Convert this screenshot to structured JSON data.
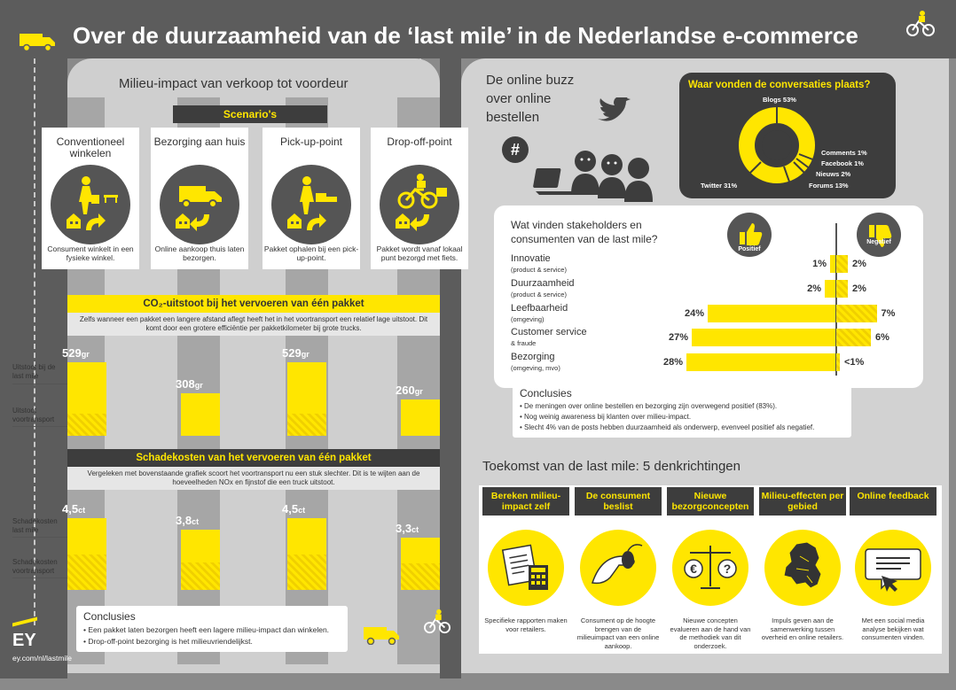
{
  "title": "Over de duurzaamheid van de ‘last mile’ in de Nederlandse e-commerce",
  "left": {
    "heading": "Milieu-impact van verkoop tot voordeur",
    "scenarios_label": "Scenario's",
    "scenarios": [
      {
        "label": "Conventioneel winkelen",
        "caption": "Consument winkelt in een fysieke winkel."
      },
      {
        "label": "Bezorging aan huis",
        "caption": "Online aankoop thuis laten bezorgen."
      },
      {
        "label": "Pick-up-point",
        "caption": "Pakket ophalen bij een pick-up-point."
      },
      {
        "label": "Drop-off-point",
        "caption": "Pakket wordt vanaf lokaal punt bezorgd met fiets."
      }
    ],
    "co2": {
      "title": "CO₂-uitstoot bij het vervoeren van één pakket",
      "subtitle": "Zelfs wanneer een pakket een langere afstand aflegt heeft het in het voortransport een relatief lage uitstoot. Dit komt door een grotere efficiëntie per pakketkilometer bij grote trucks.",
      "unit": "gr",
      "values": [
        "529",
        "308",
        "529",
        "260"
      ],
      "legend_top": "Uitstoot bij de last mile",
      "legend_bottom": "Uitstoot voortransport"
    },
    "damage": {
      "title": "Schadekosten van het vervoeren van één pakket",
      "subtitle": "Vergeleken met bovenstaande grafiek scoort het voortransport nu een stuk slechter. Dit is te wijten aan de hoeveelheden NOx en fijnstof die een truck uitstoot.",
      "unit": "ct",
      "values": [
        "4,5",
        "3,8",
        "4,5",
        "3,3"
      ],
      "legend_top": "Schadekosten last mile",
      "legend_bottom": "Schadekosten voortransport"
    },
    "conclusions_title": "Conclusies",
    "conclusions": [
      "• Een pakket laten bezorgen heeft een lagere milieu-impact dan winkelen.",
      "• Drop-off-point bezorging is het milieuvriendelijkst."
    ]
  },
  "brand": {
    "logo": "EY",
    "url": "ey.com/nl/lastmile"
  },
  "right": {
    "buzz_title": "De online buzz over online bestellen",
    "hash": "#",
    "where_title": "Waar vonden de conversaties plaats?",
    "donut": {
      "blogs": "Blogs 53%",
      "comments": "Comments 1%",
      "facebook": "Facebook 1%",
      "nieuws": "Nieuws 2%",
      "forums": "Forums 13%",
      "twitter": "Twitter 31%"
    },
    "stake_title": "Wat vinden stakeholders en consumenten van de last mile?",
    "positief": "Positief",
    "negatief": "Negatief",
    "rows": [
      {
        "name": "Innovatie",
        "sub": "(product & service)",
        "pos": "1%",
        "neg": "2%",
        "pos_v": 1,
        "neg_v": 2
      },
      {
        "name": "Duurzaamheid",
        "sub": "(product & service)",
        "pos": "2%",
        "neg": "2%",
        "pos_v": 2,
        "neg_v": 2
      },
      {
        "name": "Leefbaarheid",
        "sub": "(omgeving)",
        "pos": "24%",
        "neg": "7%",
        "pos_v": 24,
        "neg_v": 7
      },
      {
        "name": "Customer service",
        "sub": "& fraude",
        "pos": "27%",
        "neg": "6%",
        "pos_v": 27,
        "neg_v": 6
      },
      {
        "name": "Bezorging",
        "sub": "(omgeving, mvo)",
        "pos": "28%",
        "neg": "<1%",
        "pos_v": 28,
        "neg_v": 0.5
      }
    ],
    "conclusions_title": "Conclusies",
    "conclusions": [
      "• De meningen over online bestellen en bezorging zijn overwegend positief (83%).",
      "• Nog weinig awareness bij klanten over milieu-impact.",
      "• Slecht 4% van de posts hebben duurzaamheid als onderwerp, evenveel positief als negatief."
    ],
    "future_title": "Toekomst van de last mile: 5 denkrichtingen",
    "future": [
      {
        "head": "Bereken milieu-impact zelf",
        "caption": "Specifieke rapporten maken voor retailers."
      },
      {
        "head": "De consument beslist",
        "caption": "Consument op de hoogte brengen van de milieuimpact van een online aankoop."
      },
      {
        "head": "Nieuwe bezorgconcepten",
        "caption": "Nieuwe concepten evalueren aan de hand van de methodiek van dit onderzoek."
      },
      {
        "head": "Milieu-effecten per gebied",
        "caption": "Impuls geven aan de samenwerking tussen overheid en online retailers."
      },
      {
        "head": "Online feedback",
        "caption": "Met een social media analyse bekijken wat consumenten vinden."
      }
    ]
  }
}
